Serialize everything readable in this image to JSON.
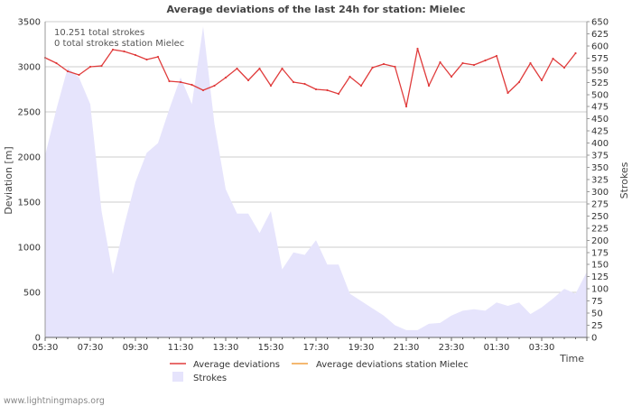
{
  "chart_data": {
    "type": "line",
    "title": "Average deviations of the last 24h for station: Mielec",
    "xlabel": "Time",
    "ylabel": "Deviation  [m]",
    "y2label": "Strokes",
    "ylim": [
      0,
      3500
    ],
    "y2lim": [
      0,
      650
    ],
    "y_ticks": [
      0,
      500,
      1000,
      1500,
      2000,
      2500,
      3000,
      3500
    ],
    "y2_ticks": [
      0,
      25,
      50,
      75,
      100,
      125,
      150,
      175,
      200,
      225,
      250,
      275,
      300,
      325,
      350,
      375,
      400,
      425,
      450,
      475,
      500,
      525,
      550,
      575,
      600,
      625,
      650
    ],
    "x_tick_labels": [
      "05:30",
      "07:30",
      "09:30",
      "11:30",
      "13:30",
      "15:30",
      "17:30",
      "19:30",
      "21:30",
      "23:30",
      "01:30",
      "03:30"
    ],
    "x_start_label": "05:30",
    "interval_minutes": 30,
    "annotations": [
      "10.251 total strokes",
      "0 total strokes station Mielec"
    ],
    "series": [
      {
        "name": "Average deviations",
        "color": "#e03c3c",
        "values": [
          3100,
          3040,
          2950,
          2910,
          3000,
          3010,
          3190,
          3170,
          3130,
          3080,
          3110,
          2840,
          2830,
          2800,
          2740,
          2790,
          2880,
          2980,
          2850,
          2980,
          2790,
          2980,
          2830,
          2810,
          2750,
          2740,
          2700,
          2890,
          2790,
          2990,
          3030,
          3000,
          2560,
          3200,
          2790,
          3050,
          2890,
          3040,
          3020,
          3070,
          3120,
          2710,
          2830,
          3040,
          2850,
          3090,
          2990,
          3150
        ]
      },
      {
        "name": "Average deviations station Mielec",
        "color": "#f0a040",
        "values": []
      },
      {
        "name": "Strokes",
        "color": "#e6e4fc",
        "axis": "right",
        "type": "area",
        "values": [
          375,
          470,
          555,
          535,
          480,
          260,
          130,
          230,
          320,
          380,
          400,
          470,
          535,
          480,
          640,
          440,
          305,
          255,
          255,
          215,
          260,
          140,
          175,
          170,
          200,
          150,
          150,
          90,
          75,
          60,
          45,
          25,
          15,
          15,
          28,
          30,
          45,
          55,
          58,
          55,
          72,
          65,
          72,
          48,
          62,
          80,
          100,
          90,
          135
        ]
      }
    ],
    "legend": [
      "Average deviations",
      "Average deviations station Mielec",
      "Strokes"
    ]
  },
  "footer": "www.lightningmaps.org"
}
